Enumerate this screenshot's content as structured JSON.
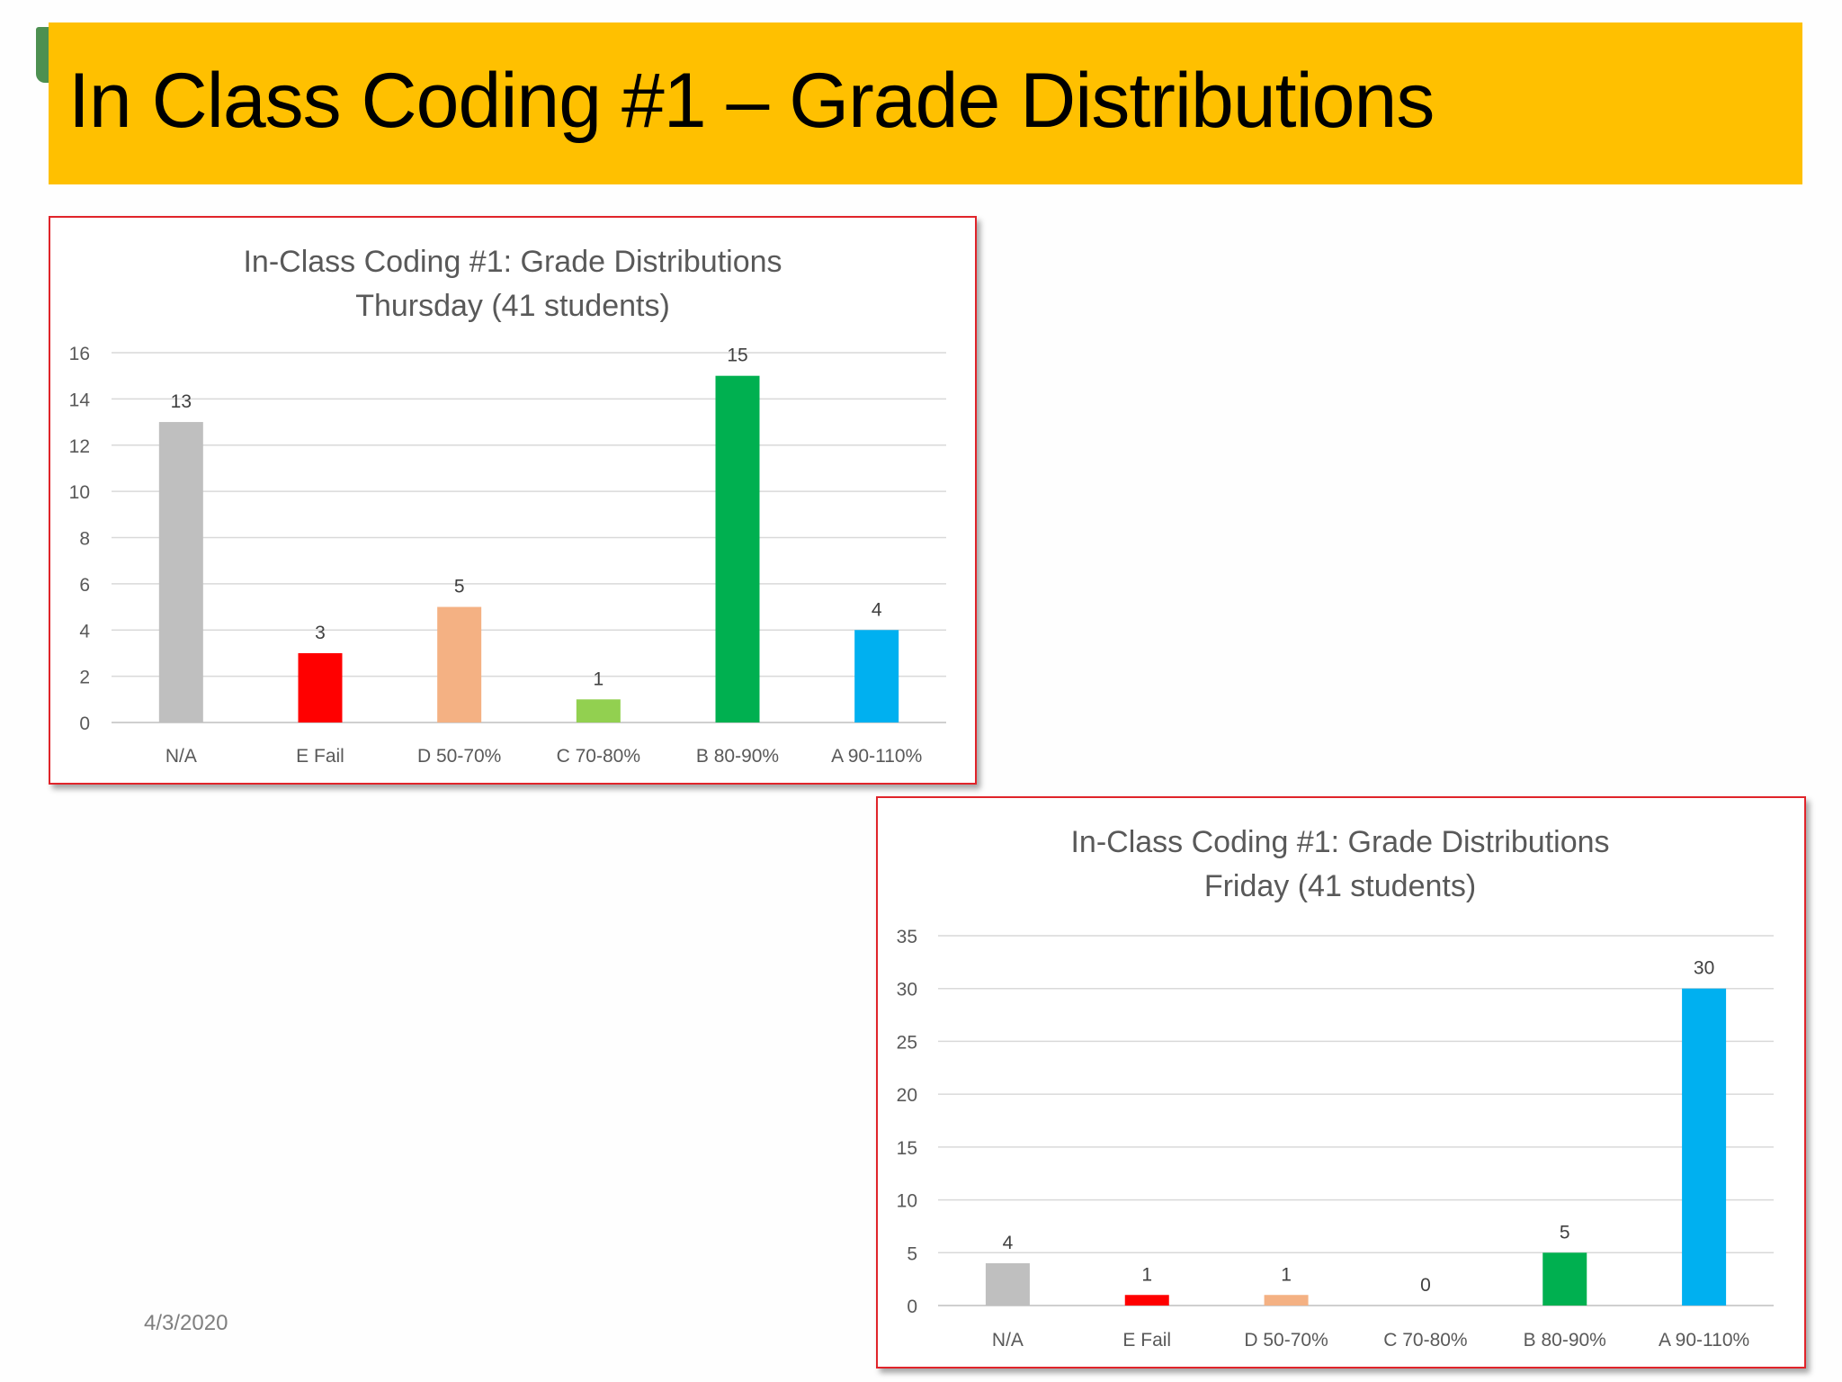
{
  "slide": {
    "title": "In Class Coding #1 – Grade Distributions",
    "date": "4/3/2020"
  },
  "colors": {
    "title_bar": "#ffc000",
    "border": "#e0242a"
  },
  "chart_data": [
    {
      "type": "bar",
      "title": "In-Class Coding #1: Grade Distributions",
      "subtitle": "Thursday  (41 students)",
      "categories": [
        "N/A",
        "E Fail",
        "D 50-70%",
        "C 70-80%",
        "B 80-90%",
        "A 90-110%"
      ],
      "values": [
        13,
        3,
        5,
        1,
        15,
        4
      ],
      "bar_colors": [
        "#bfbfbf",
        "#ff0000",
        "#f4b183",
        "#92d050",
        "#00b050",
        "#00b0f0"
      ],
      "ylim": [
        0,
        16
      ],
      "yticks": [
        0,
        2,
        4,
        6,
        8,
        10,
        12,
        14,
        16
      ],
      "xlabel": "",
      "ylabel": "",
      "grid": true,
      "data_labels": true
    },
    {
      "type": "bar",
      "title": "In-Class Coding #1: Grade Distributions",
      "subtitle": "Friday (41 students)",
      "categories": [
        "N/A",
        "E Fail",
        "D 50-70%",
        "C 70-80%",
        "B 80-90%",
        "A 90-110%"
      ],
      "values": [
        4,
        1,
        1,
        0,
        5,
        30
      ],
      "bar_colors": [
        "#bfbfbf",
        "#ff0000",
        "#f4b183",
        "#92d050",
        "#00b050",
        "#00b0f0"
      ],
      "ylim": [
        0,
        35
      ],
      "yticks": [
        0,
        5,
        10,
        15,
        20,
        25,
        30,
        35
      ],
      "xlabel": "",
      "ylabel": "",
      "grid": true,
      "data_labels": true
    }
  ]
}
